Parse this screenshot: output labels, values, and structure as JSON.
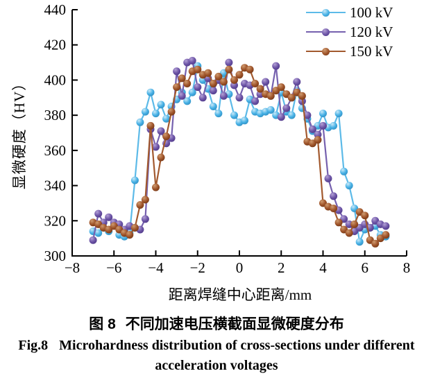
{
  "chart_data": {
    "type": "line",
    "marker": "sphere-circle",
    "title": "",
    "xlabel": "距离焊缝中心距离/mm",
    "ylabel": "显微硬度（HV）",
    "xlim": [
      -8,
      8
    ],
    "ylim": [
      300,
      440
    ],
    "xticks": [
      -8,
      -6,
      -4,
      -2,
      0,
      2,
      4,
      6,
      8
    ],
    "yticks": [
      300,
      320,
      340,
      360,
      380,
      400,
      420,
      440
    ],
    "xtick_labels": [
      "−8",
      "−6",
      "−4",
      "−2",
      "0",
      "2",
      "4",
      "6",
      "8"
    ],
    "ytick_labels": [
      "300",
      "320",
      "340",
      "360",
      "380",
      "400",
      "420",
      "440"
    ],
    "grid": false,
    "axis_color": "#000000",
    "text_color": "#000000",
    "legend": {
      "position": "top-right",
      "entries": [
        "100 kV",
        "120 kV",
        "150 kV"
      ]
    },
    "x": [
      -7.0,
      -6.75,
      -6.5,
      -6.25,
      -6.0,
      -5.75,
      -5.5,
      -5.25,
      -5.0,
      -4.75,
      -4.5,
      -4.25,
      -4.0,
      -3.75,
      -3.5,
      -3.25,
      -3.0,
      -2.75,
      -2.5,
      -2.25,
      -2.0,
      -1.75,
      -1.5,
      -1.25,
      -1.0,
      -0.75,
      -0.5,
      -0.25,
      0.0,
      0.25,
      0.5,
      0.75,
      1.0,
      1.25,
      1.5,
      1.75,
      2.0,
      2.25,
      2.5,
      2.75,
      3.0,
      3.25,
      3.5,
      3.75,
      4.0,
      4.25,
      4.5,
      4.75,
      5.0,
      5.25,
      5.5,
      5.75,
      6.0,
      6.25,
      6.5,
      6.75,
      7.0
    ],
    "series": [
      {
        "name": "100 kV",
        "color": "#45b0e5",
        "line_color": "#5cbae8",
        "highlight": "#c9e9f8",
        "shade": "#2f88ba",
        "values": [
          314,
          313,
          316,
          314,
          318,
          312,
          311,
          313,
          343,
          376,
          382,
          393,
          381,
          386,
          378,
          385,
          389,
          393,
          388,
          393,
          408,
          400,
          395,
          385,
          381,
          404,
          392,
          380,
          376,
          377,
          389,
          382,
          381,
          382,
          383,
          380,
          393,
          382,
          380,
          394,
          384,
          378,
          371,
          374,
          381,
          373,
          374,
          381,
          348,
          340,
          327,
          308,
          315,
          316,
          317,
          312,
          311
        ]
      },
      {
        "name": "120 kV",
        "color": "#6b53a5",
        "line_color": "#7560ae",
        "highlight": "#b3a0d6",
        "shade": "#4b3584",
        "values": [
          309,
          324,
          319,
          322,
          319,
          318,
          315,
          317,
          316,
          315,
          321,
          372,
          362,
          371,
          364,
          367,
          405,
          391,
          410,
          411,
          396,
          390,
          401,
          394,
          400,
          391,
          410,
          397,
          390,
          398,
          397,
          388,
          392,
          399,
          391,
          408,
          379,
          384,
          390,
          399,
          388,
          380,
          372,
          369,
          374,
          344,
          334,
          326,
          321,
          318,
          314,
          316,
          318,
          316,
          320,
          318,
          317
        ]
      },
      {
        "name": "150 kV",
        "color": "#9e5329",
        "line_color": "#a2592e",
        "highlight": "#cf9b70",
        "shade": "#6e3312",
        "values": [
          319,
          318,
          316,
          315,
          317,
          315,
          313,
          312,
          316,
          329,
          332,
          374,
          339,
          356,
          368,
          382,
          396,
          401,
          398,
          405,
          406,
          403,
          404,
          398,
          402,
          399,
          406,
          400,
          403,
          407,
          406,
          398,
          395,
          392,
          391,
          394,
          396,
          392,
          390,
          393,
          391,
          365,
          364,
          366,
          330,
          328,
          327,
          319,
          315,
          313,
          318,
          325,
          323,
          309,
          307,
          310,
          312
        ]
      }
    ]
  },
  "figure": {
    "caption_zh": {
      "label": "图 8",
      "text": "不同加速电压横截面显微硬度分布"
    },
    "caption_en": {
      "label": "Fig.8",
      "line1": "Microhardness distribution of cross-sections under different",
      "line2": "acceleration voltages"
    }
  }
}
